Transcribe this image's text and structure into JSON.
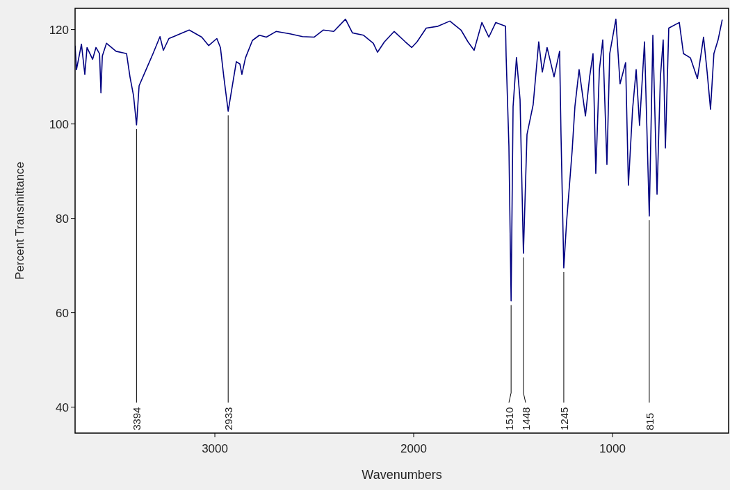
{
  "chart_data": {
    "type": "line",
    "xlabel": "Wavenumbers",
    "ylabel": "Percent Transmittance",
    "xlim": [
      3703,
      416
    ],
    "ylim": [
      34.5,
      124.5
    ],
    "xticks": [
      3000,
      2000,
      1000
    ],
    "yticks": [
      40,
      60,
      80,
      100,
      120
    ],
    "series": [
      {
        "color": "#000080",
        "x": [
          3703,
          3696,
          3671,
          3654,
          3643,
          3615,
          3598,
          3580,
          3573,
          3566,
          3545,
          3497,
          3444,
          3427,
          3409,
          3394,
          3381,
          3346,
          3311,
          3276,
          3259,
          3231,
          3129,
          3066,
          3031,
          2990,
          2972,
          2955,
          2933,
          2916,
          2892,
          2874,
          2864,
          2846,
          2811,
          2776,
          2741,
          2692,
          2622,
          2559,
          2500,
          2455,
          2402,
          2343,
          2308,
          2252,
          2203,
          2182,
          2147,
          2098,
          2042,
          2010,
          1983,
          1937,
          1878,
          1818,
          1762,
          1727,
          1696,
          1657,
          1622,
          1587,
          1538,
          1535,
          1521,
          1510,
          1500,
          1483,
          1465,
          1448,
          1430,
          1399,
          1371,
          1353,
          1329,
          1294,
          1266,
          1259,
          1245,
          1231,
          1203,
          1189,
          1168,
          1136,
          1115,
          1098,
          1084,
          1066,
          1049,
          1028,
          1014,
          983,
          962,
          934,
          920,
          899,
          881,
          864,
          839,
          815,
          797,
          776,
          759,
          745,
          734,
          717,
          664,
          643,
          608,
          573,
          542,
          524,
          507,
          490,
          469,
          448
        ],
        "values": [
          116.6,
          111.5,
          116.9,
          110.5,
          116.2,
          113.7,
          116.2,
          114.9,
          106.6,
          114.4,
          117.1,
          115.4,
          114.9,
          110.0,
          106.0,
          99.8,
          108.1,
          111.5,
          114.9,
          118.5,
          115.6,
          118.1,
          119.9,
          118.4,
          116.6,
          118.1,
          116.2,
          110.0,
          102.7,
          107.1,
          113.2,
          112.7,
          110.5,
          114.0,
          117.7,
          118.8,
          118.4,
          119.6,
          119.1,
          118.5,
          118.4,
          119.9,
          119.6,
          122.2,
          119.3,
          118.8,
          117.1,
          115.2,
          117.4,
          119.6,
          117.4,
          116.2,
          117.4,
          120.3,
          120.7,
          121.8,
          119.9,
          117.4,
          115.6,
          121.5,
          118.4,
          121.5,
          120.7,
          114.4,
          95.3,
          62.5,
          103.7,
          114.1,
          105.2,
          72.6,
          97.8,
          104.1,
          117.4,
          111.0,
          116.2,
          110.0,
          115.4,
          97.8,
          69.5,
          79.2,
          94.3,
          103.7,
          111.5,
          101.7,
          110.0,
          114.9,
          89.5,
          111.5,
          117.8,
          91.4,
          114.9,
          122.2,
          108.5,
          113.0,
          87.0,
          103.1,
          111.5,
          99.7,
          117.4,
          80.5,
          118.8,
          85.1,
          110.0,
          117.8,
          94.9,
          120.3,
          121.5,
          114.9,
          114.0,
          109.6,
          118.4,
          111.0,
          103.1,
          114.9,
          117.8,
          122.1
        ]
      }
    ],
    "annotations": [
      {
        "text": "3394",
        "x": 3394,
        "y": 99.8
      },
      {
        "text": "2933",
        "x": 2933,
        "y": 102.7
      },
      {
        "text": "1510",
        "x": 1510,
        "y": 62.5
      },
      {
        "text": "1448",
        "x": 1448,
        "y": 72.6
      },
      {
        "text": "1245",
        "x": 1245,
        "y": 69.5
      },
      {
        "text": "815",
        "x": 815,
        "y": 80.5
      }
    ]
  }
}
